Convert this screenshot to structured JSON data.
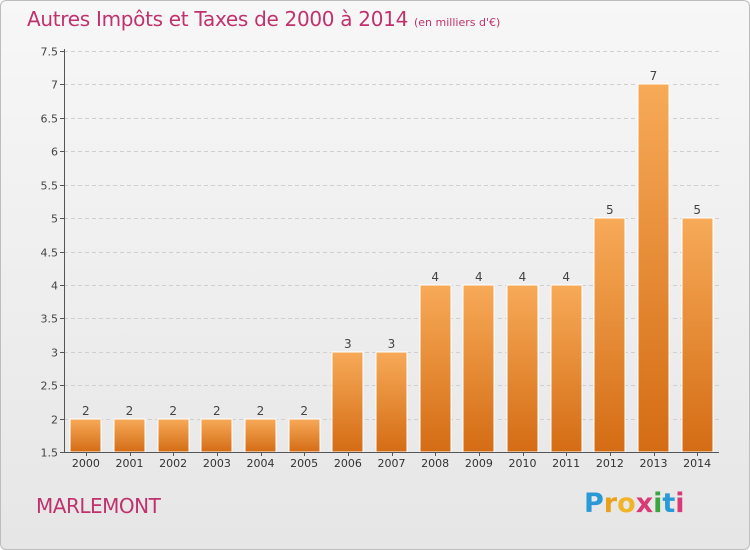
{
  "header": {
    "title": "Autres Impôts et Taxes de 2000 à 2014",
    "unit": "(en milliers d'€)"
  },
  "footer": {
    "commune": "MARLEMONT",
    "logo_letters": [
      "P",
      "r",
      "o",
      "x",
      "i",
      "t",
      "i"
    ],
    "logo_colors": [
      "#2a9ad6",
      "#e8a21a",
      "#f0b429",
      "#d93a76",
      "#3aa640",
      "#2a9ad6",
      "#d93a76"
    ]
  },
  "colors": {
    "title": "#c0326e",
    "bar_light": "#f7aa58",
    "bar_dark": "#d46c14",
    "grid": "#cfcfcf"
  },
  "chart_data": {
    "type": "bar",
    "title": "Autres Impôts et Taxes de 2000 à 2014",
    "subtitle": "(en milliers d'€)",
    "xlabel": "",
    "ylabel": "",
    "ylim": [
      1.5,
      7.5
    ],
    "yticks": [
      "1.5",
      "2",
      "2.5",
      "3",
      "3.5",
      "4",
      "4.5",
      "5",
      "5.5",
      "6",
      "6.5",
      "7",
      "7.5"
    ],
    "grid": true,
    "categories": [
      "2000",
      "2001",
      "2002",
      "2003",
      "2004",
      "2005",
      "2006",
      "2007",
      "2008",
      "2009",
      "2010",
      "2011",
      "2012",
      "2013",
      "2014"
    ],
    "values": [
      2,
      2,
      2,
      2,
      2,
      2,
      3,
      3,
      4,
      4,
      4,
      4,
      5,
      7,
      5
    ],
    "data_labels": [
      "2",
      "2",
      "2",
      "2",
      "2",
      "2",
      "3",
      "3",
      "4",
      "4",
      "4",
      "4",
      "5",
      "7",
      "5"
    ]
  }
}
